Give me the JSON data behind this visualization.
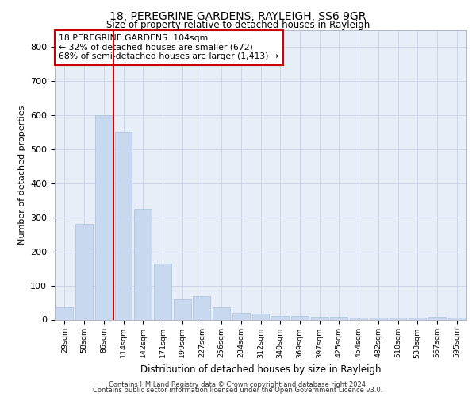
{
  "title_line1": "18, PEREGRINE GARDENS, RAYLEIGH, SS6 9GR",
  "title_line2": "Size of property relative to detached houses in Rayleigh",
  "xlabel": "Distribution of detached houses by size in Rayleigh",
  "ylabel": "Number of detached properties",
  "bar_labels": [
    "29sqm",
    "58sqm",
    "86sqm",
    "114sqm",
    "142sqm",
    "171sqm",
    "199sqm",
    "227sqm",
    "256sqm",
    "284sqm",
    "312sqm",
    "340sqm",
    "369sqm",
    "397sqm",
    "425sqm",
    "454sqm",
    "482sqm",
    "510sqm",
    "538sqm",
    "567sqm",
    "595sqm"
  ],
  "bar_values": [
    35,
    280,
    600,
    550,
    325,
    165,
    60,
    68,
    35,
    20,
    18,
    10,
    10,
    8,
    8,
    5,
    5,
    5,
    5,
    8,
    5
  ],
  "bar_color": "#c8d8ee",
  "bar_edge_color": "#a8c0dc",
  "grid_color": "#ccd6e8",
  "background_color": "#e8eef8",
  "annotation_text": "18 PEREGRINE GARDENS: 104sqm\n← 32% of detached houses are smaller (672)\n68% of semi-detached houses are larger (1,413) →",
  "annotation_box_color": "#ffffff",
  "annotation_box_edge_color": "#cc0000",
  "vline_x": 2.5,
  "vline_color": "#cc0000",
  "ylim": [
    0,
    850
  ],
  "yticks": [
    0,
    100,
    200,
    300,
    400,
    500,
    600,
    700,
    800
  ],
  "footer_line1": "Contains HM Land Registry data © Crown copyright and database right 2024.",
  "footer_line2": "Contains public sector information licensed under the Open Government Licence v3.0."
}
